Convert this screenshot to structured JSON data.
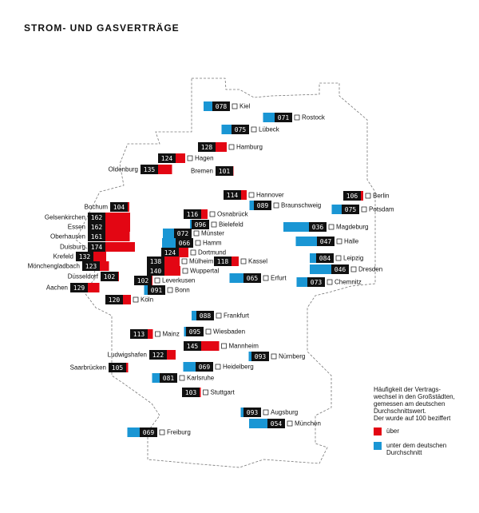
{
  "chart_data": {
    "type": "bar",
    "title": "STROM- UND GASVERTRÄGE",
    "baseline": 100,
    "colors": {
      "above": "#e30613",
      "below": "#1a96d4"
    },
    "categories": [
      "Kiel",
      "Rostock",
      "Lübeck",
      "Hamburg",
      "Hagen",
      "Oldenburg",
      "Bremen",
      "Berlin",
      "Potsdam",
      "Hannover",
      "Braunschweig",
      "Osnabrück",
      "Bielefeld",
      "Münster",
      "Hamm",
      "Dortmund",
      "Mülheim",
      "Wuppertal",
      "Kassel",
      "Erfurt",
      "Bochum",
      "Gelsenkirchen",
      "Essen",
      "Oberhausen",
      "Duisburg",
      "Krefeld",
      "Mönchengladbach",
      "Düsseldorf",
      "Aachen",
      "Leverkusen",
      "Köln",
      "Bonn",
      "Magdeburg",
      "Halle",
      "Leipzig",
      "Dresden",
      "Chemnitz",
      "Frankfurt",
      "Mainz",
      "Wiesbaden",
      "Mannheim",
      "Ludwigshafen",
      "Nürnberg",
      "Heidelberg",
      "Saarbrücken",
      "Karlsruhe",
      "Stuttgart",
      "Augsburg",
      "München",
      "Freiburg"
    ],
    "values": [
      78,
      71,
      75,
      128,
      124,
      135,
      101,
      106,
      75,
      114,
      89,
      116,
      96,
      72,
      66,
      124,
      138,
      140,
      118,
      65,
      104,
      162,
      162,
      161,
      174,
      132,
      123,
      102,
      129,
      102,
      120,
      91,
      36,
      47,
      84,
      46,
      73,
      88,
      113,
      95,
      145,
      122,
      93,
      69,
      105,
      81,
      103,
      93,
      54,
      69
    ],
    "value_labels": [
      "078",
      "071",
      "075",
      "128",
      "124",
      "135",
      "101",
      "106",
      "075",
      "114",
      "089",
      "116",
      "096",
      "072",
      "066",
      "124",
      "138",
      "140",
      "118",
      "065",
      "104",
      "162",
      "162",
      "161",
      "174",
      "132",
      "123",
      "102",
      "129",
      "102",
      "120",
      "091",
      "036",
      "047",
      "084",
      "046",
      "073",
      "088",
      "113",
      "095",
      "145",
      "122",
      "093",
      "069",
      "105",
      "081",
      "103",
      "093",
      "054",
      "069"
    ],
    "note": [
      "Häufigkeit der Vertrags-",
      "wechsel in den Großstädten,",
      "gemessen am deutschen",
      "Durchschnittswert.",
      "Der wurde auf 100 beziffert"
    ],
    "legend": [
      {
        "name": [
          "über"
        ],
        "color": "#e30613"
      },
      {
        "name": [
          "unter dem deutschen",
          "Durchschnitt"
        ],
        "color": "#1a96d4"
      }
    ]
  }
}
